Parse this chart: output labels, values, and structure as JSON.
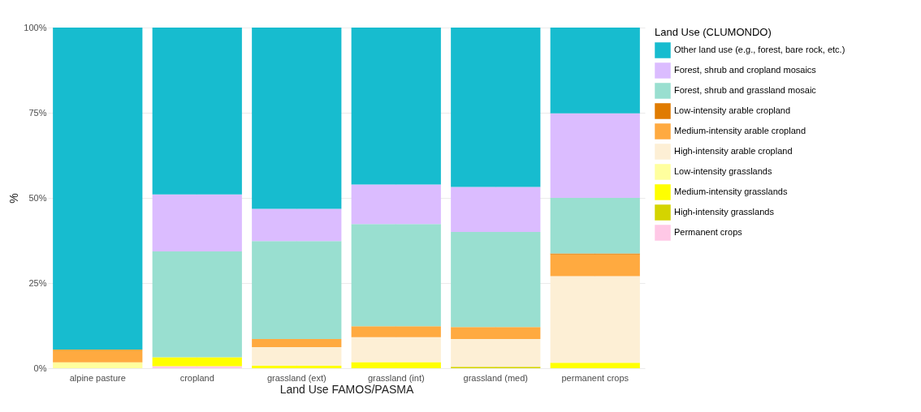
{
  "chart_data": {
    "type": "bar",
    "stacked": true,
    "xlabel": "Land Use FAMOS/PASMA",
    "ylabel": "%",
    "legend_title": "Land Use (CLUMONDO)",
    "legend": "right",
    "grid": true,
    "categories": [
      "alpine pasture",
      "cropland",
      "grassland (ext)",
      "grassland (int)",
      "grassland (med)",
      "permanent crops"
    ],
    "ylim": [
      0,
      100
    ],
    "yticks": [
      {
        "value": 0,
        "label": "0%"
      },
      {
        "value": 25,
        "label": "25%"
      },
      {
        "value": 50,
        "label": "50%"
      },
      {
        "value": 75,
        "label": "75%"
      },
      {
        "value": 100,
        "label": "100%"
      }
    ],
    "series": [
      {
        "name": "Permanent crops",
        "color": "#ffc8e6",
        "values": [
          null,
          0.6,
          null,
          null,
          null,
          null
        ]
      },
      {
        "name": "High-intensity grasslands",
        "color": "#d4d400",
        "values": [
          null,
          null,
          null,
          null,
          0.4,
          null
        ]
      },
      {
        "name": "Medium-intensity grasslands",
        "color": "#ffff00",
        "values": [
          null,
          2.6,
          0.8,
          1.8,
          null,
          1.6
        ]
      },
      {
        "name": "Low-intensity grasslands",
        "color": "#ffff9e",
        "values": [
          1.7,
          null,
          null,
          null,
          null,
          null
        ]
      },
      {
        "name": "High-intensity arable cropland",
        "color": "#fdefd5",
        "values": [
          null,
          null,
          5.4,
          7.3,
          8.2,
          25.4
        ]
      },
      {
        "name": "Medium-intensity arable cropland",
        "color": "#ffaa40",
        "values": [
          3.8,
          null,
          2.4,
          3.2,
          3.5,
          6.4
        ]
      },
      {
        "name": "Low-intensity arable cropland",
        "color": "#e07b00",
        "values": [
          null,
          null,
          null,
          null,
          null,
          0.3
        ]
      },
      {
        "name": "Forest, shrub and grassland mosaic",
        "color": "#99dfd0",
        "values": [
          null,
          31.1,
          28.7,
          30.0,
          27.9,
          16.3
        ]
      },
      {
        "name": "Forest, shrub and cropland mosaics",
        "color": "#dbbcff",
        "values": [
          null,
          16.7,
          9.5,
          11.6,
          13.2,
          24.8
        ]
      },
      {
        "name": "Other land use (e.g., forest, bare rock, etc.)",
        "color": "#17bccf",
        "values": [
          94.5,
          49.0,
          53.2,
          46.1,
          46.8,
          25.2
        ]
      }
    ]
  }
}
